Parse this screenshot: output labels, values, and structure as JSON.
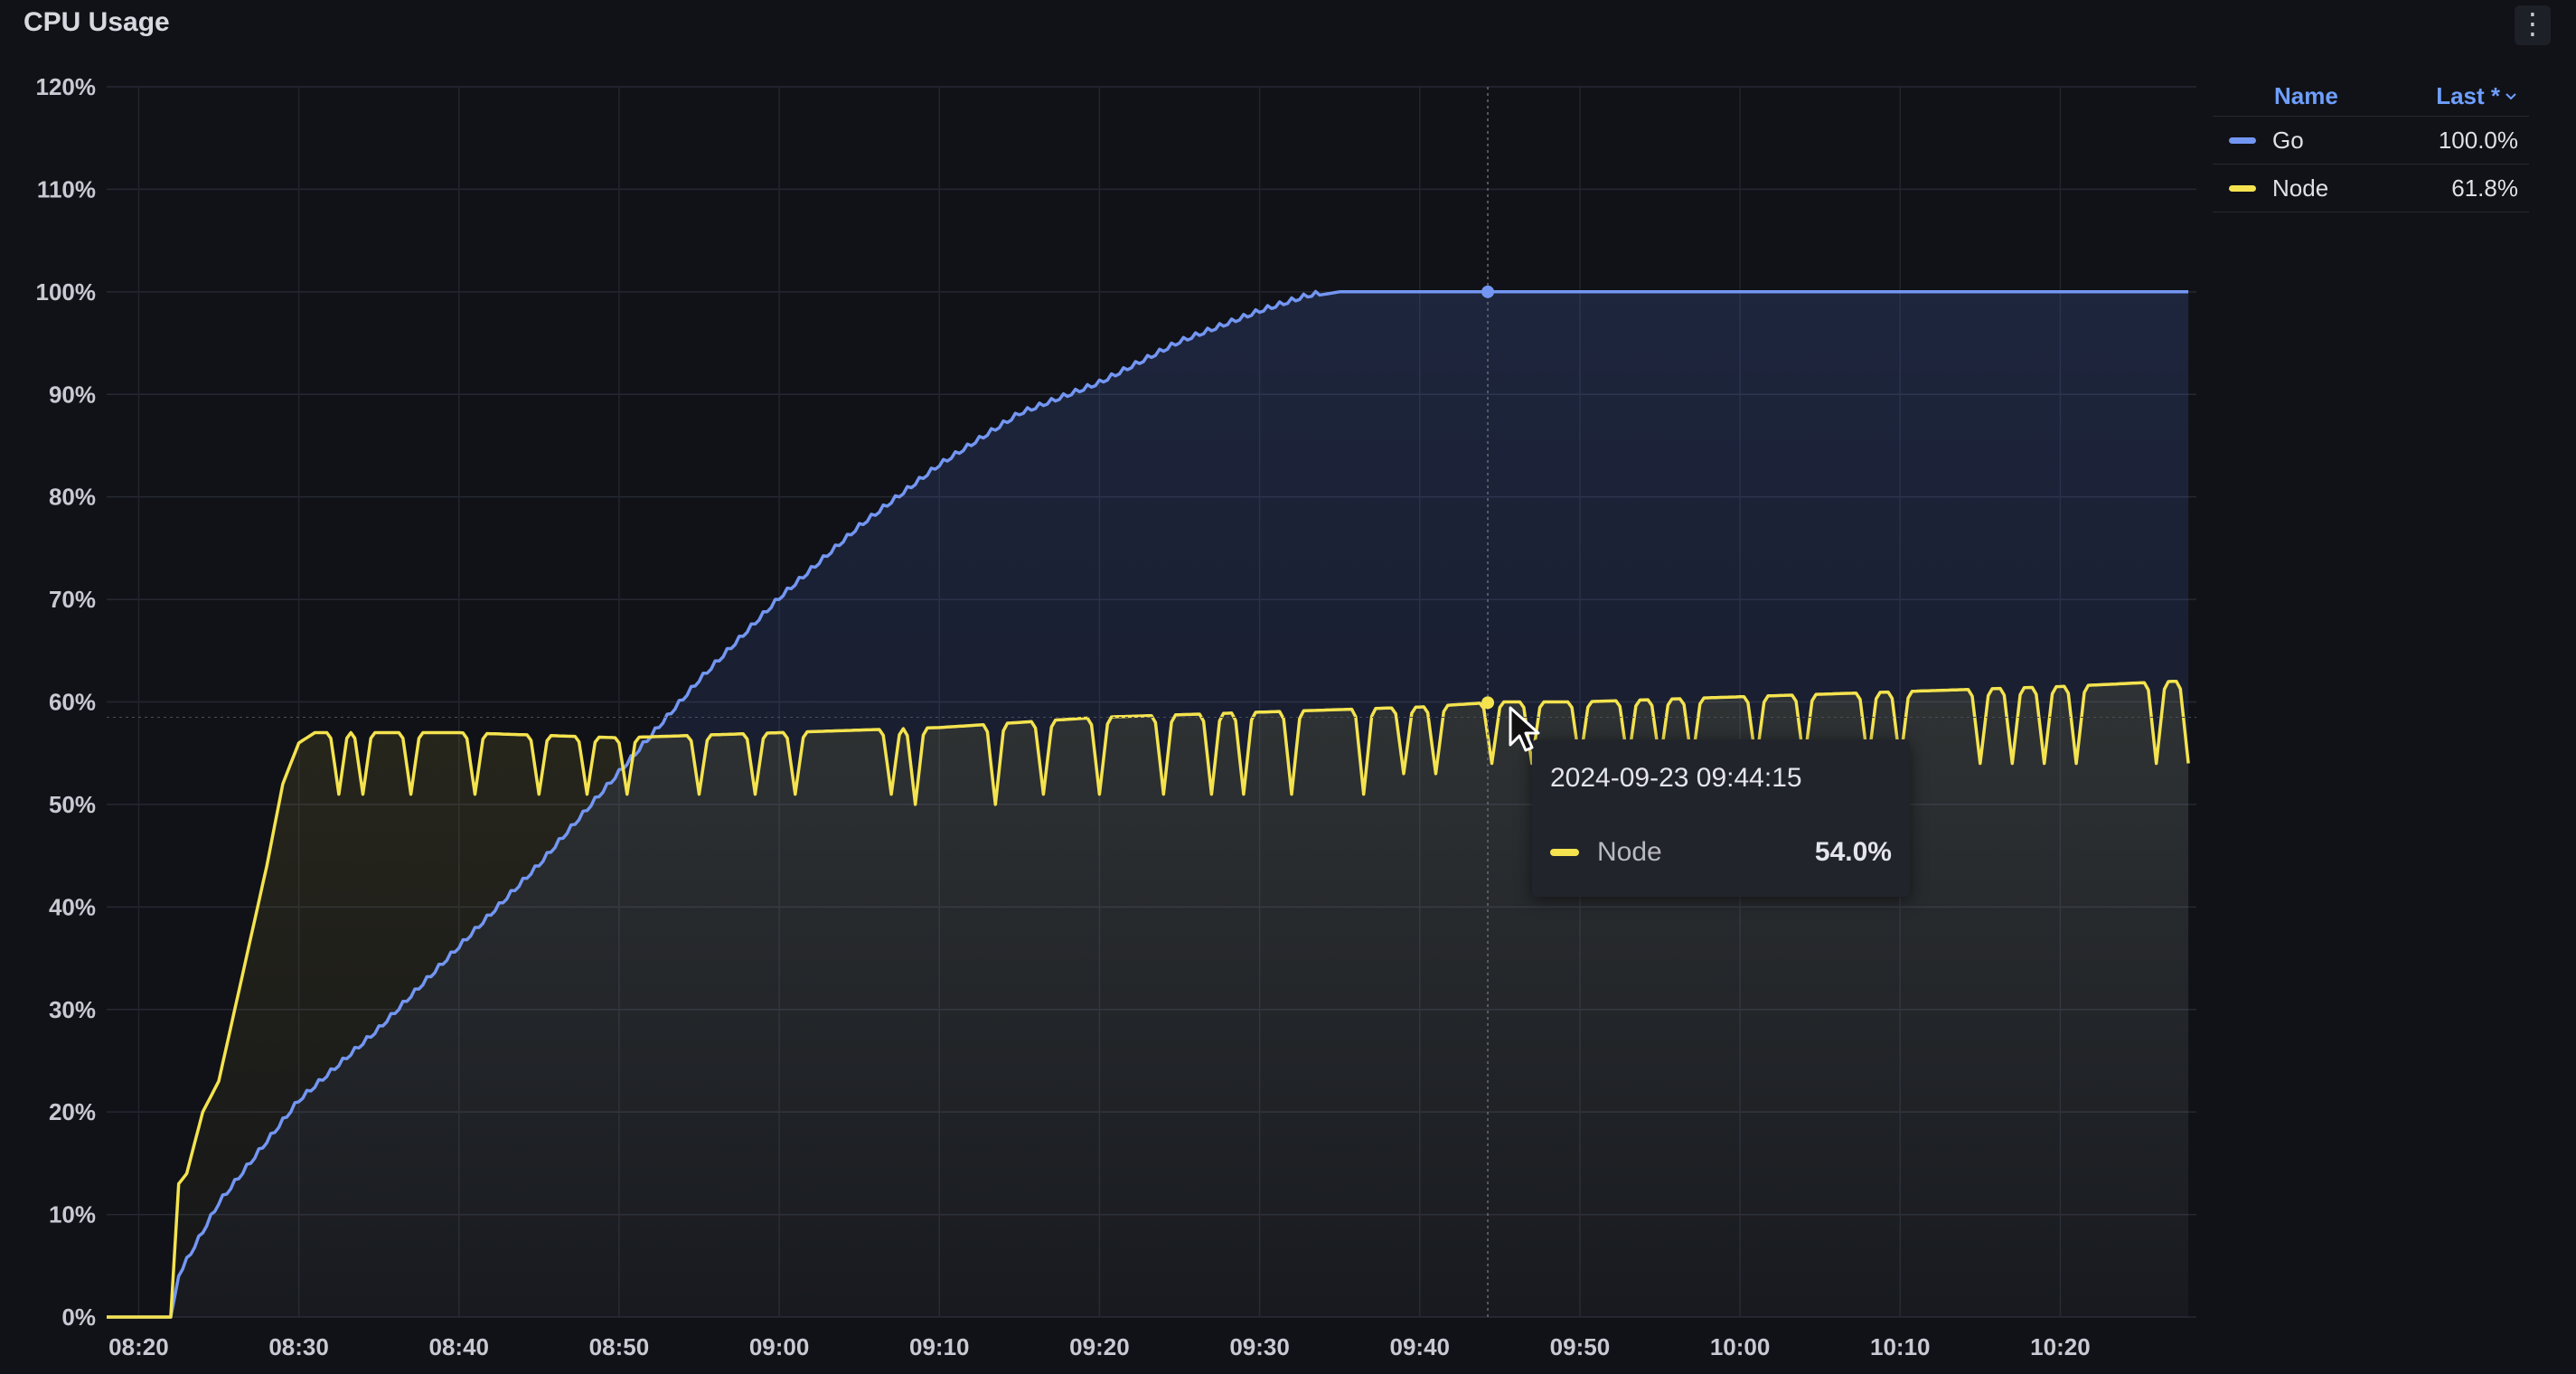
{
  "panel": {
    "title": "CPU Usage",
    "menu_icon": "kebab-menu-icon"
  },
  "legend": {
    "name_header": "Name",
    "value_header": "Last *",
    "items": [
      {
        "name": "Go",
        "value": "100.0%",
        "color": "#7396f2"
      },
      {
        "name": "Node",
        "value": "61.8%",
        "color": "#f4e34f"
      }
    ]
  },
  "tooltip": {
    "time": "2024-09-23 09:44:15",
    "series": "Node",
    "value": "54.0%",
    "color": "#f4e34f"
  },
  "chart_data": {
    "type": "line",
    "title": "CPU Usage",
    "xlabel": "",
    "ylabel": "",
    "x_ticks": [
      "08:20",
      "08:30",
      "08:40",
      "08:50",
      "09:00",
      "09:10",
      "09:20",
      "09:30",
      "09:40",
      "09:50",
      "10:00",
      "10:10",
      "10:20"
    ],
    "x_range_minutes": [
      -2,
      128.5
    ],
    "y_ticks": [
      "0%",
      "10%",
      "20%",
      "30%",
      "40%",
      "50%",
      "60%",
      "70%",
      "80%",
      "90%",
      "100%",
      "110%",
      "120%"
    ],
    "ylim": [
      0,
      120
    ],
    "grid": true,
    "legend_position": "right",
    "series": [
      {
        "name": "Go",
        "color": "#7396f2",
        "points": [
          [
            "08:18",
            0
          ],
          [
            "08:22",
            0
          ],
          [
            "08:22.5",
            4
          ],
          [
            "08:25",
            11
          ],
          [
            "08:28",
            17
          ],
          [
            "08:30",
            21
          ],
          [
            "08:35",
            28
          ],
          [
            "08:40",
            36
          ],
          [
            "08:45",
            44
          ],
          [
            "08:50",
            53
          ],
          [
            "08:55",
            62
          ],
          [
            "09:00",
            70
          ],
          [
            "09:05",
            77
          ],
          [
            "09:10",
            83
          ],
          [
            "09:15",
            88
          ],
          [
            "09:20",
            91
          ],
          [
            "09:25",
            95
          ],
          [
            "09:30",
            98
          ],
          [
            "09:33",
            99.5
          ],
          [
            "09:35",
            100
          ],
          [
            "09:45",
            100
          ],
          [
            "10:00",
            100
          ],
          [
            "10:10",
            100
          ],
          [
            "10:27",
            100
          ]
        ]
      },
      {
        "name": "Node",
        "color": "#f4e34f",
        "points": [
          [
            "08:18",
            0
          ],
          [
            "08:22",
            0
          ],
          [
            "08:22.5",
            13
          ],
          [
            "08:23",
            14
          ],
          [
            "08:24",
            20
          ],
          [
            "08:25",
            23
          ],
          [
            "08:26",
            30
          ],
          [
            "08:27",
            37
          ],
          [
            "08:28",
            44
          ],
          [
            "08:29",
            52
          ],
          [
            "08:30",
            56
          ],
          [
            "08:31",
            57
          ],
          [
            "08:40",
            57
          ],
          [
            "08:50",
            56.5
          ],
          [
            "09:00",
            57
          ],
          [
            "09:10",
            57.5
          ],
          [
            "09:20",
            58.5
          ],
          [
            "09:30",
            59
          ],
          [
            "09:40",
            59.5
          ],
          [
            "09:45",
            60
          ],
          [
            "09:50",
            60
          ],
          [
            "10:00",
            60.5
          ],
          [
            "10:10",
            61
          ],
          [
            "10:20",
            61.5
          ],
          [
            "10:27",
            62
          ]
        ],
        "dips_minutes": [
          12.5,
          14,
          17,
          21,
          25,
          28,
          30.5,
          35,
          38.5,
          41,
          47,
          48.5,
          53.5,
          56.5,
          60,
          64,
          67,
          69,
          72,
          76.5,
          79,
          81,
          84.5,
          87,
          90,
          93,
          95,
          97,
          101,
          104,
          108,
          110,
          115,
          117,
          119,
          121,
          126,
          128
        ],
        "dip_values": [
          51,
          51,
          51,
          51,
          51,
          51,
          51,
          51,
          51,
          51,
          51,
          50,
          50,
          51,
          51,
          51,
          51,
          51,
          51,
          51,
          53,
          53,
          54,
          54,
          54,
          54,
          54,
          54,
          54,
          54,
          54,
          54,
          54,
          54,
          54,
          54,
          54,
          54
        ]
      }
    ]
  }
}
